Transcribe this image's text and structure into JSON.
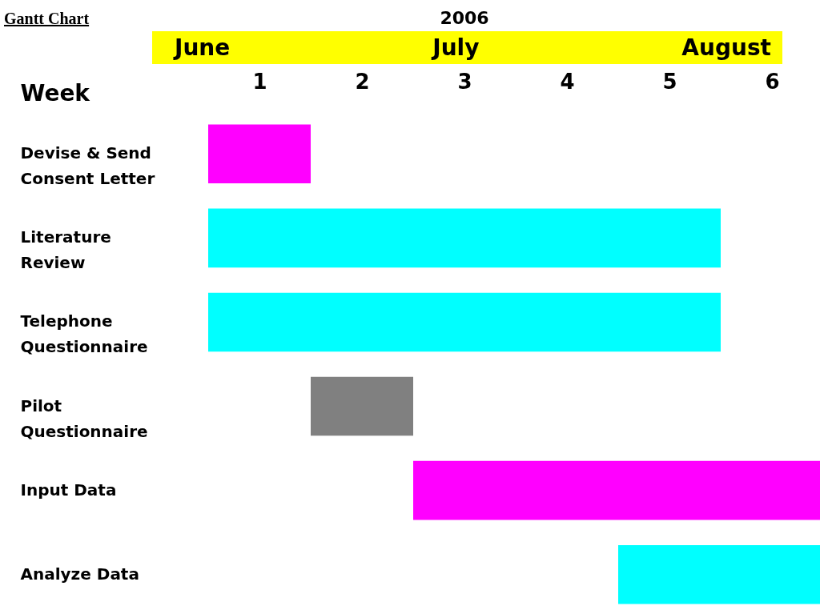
{
  "chart_data": {
    "type": "bar",
    "orientation": "horizontal",
    "title": "Gantt Chart",
    "subtitle": "2006",
    "xlabel": "Week",
    "annotations": [
      "June",
      "July",
      "August"
    ],
    "categories": [
      "Devise & Send Consent Letter",
      "Literature Review",
      "Telephone Questionnaire",
      "Pilot Questionnaire",
      "Input Data",
      "Analyze Data"
    ],
    "base": [
      0.5,
      0.5,
      0.5,
      1.5,
      2.5,
      4.5
    ],
    "values": [
      1,
      5,
      5,
      1,
      4,
      2
    ],
    "colors": [
      "#ff00ff",
      "#00ffff",
      "#00ffff",
      "#808080",
      "#ff00ff",
      "#00ffff"
    ],
    "xlim": [
      0.5,
      6.5
    ],
    "xticks": [
      1,
      2,
      3,
      4,
      5,
      6
    ],
    "grid": false
  }
}
